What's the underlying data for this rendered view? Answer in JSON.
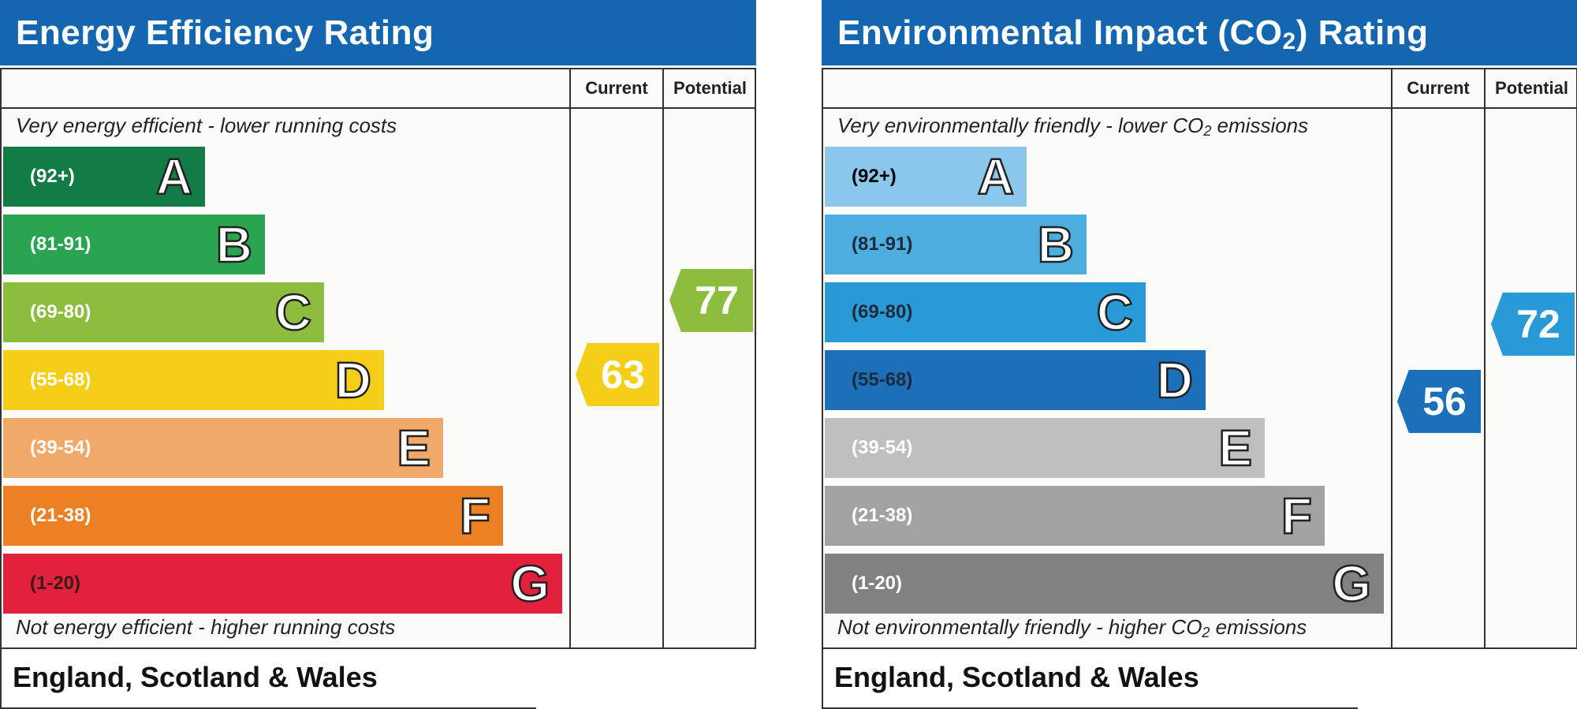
{
  "chart_data": [
    {
      "type": "bar",
      "title": "Energy Efficiency Rating",
      "column_headers": [
        "Current",
        "Potential"
      ],
      "top_note": "Very energy efficient - lower running costs",
      "bottom_note": "Not energy efficient - higher running costs",
      "footer": "England, Scotland & Wales",
      "bands": [
        {
          "range": "(92+)",
          "letter": "A",
          "min": 92,
          "max": 100,
          "color": "#137b45"
        },
        {
          "range": "(81-91)",
          "letter": "B",
          "min": 81,
          "max": 91,
          "color": "#2aa450"
        },
        {
          "range": "(69-80)",
          "letter": "C",
          "min": 69,
          "max": 80,
          "color": "#8cbd3f"
        },
        {
          "range": "(55-68)",
          "letter": "D",
          "min": 55,
          "max": 68,
          "color": "#f5cf17"
        },
        {
          "range": "(39-54)",
          "letter": "E",
          "min": 39,
          "max": 54,
          "color": "#f1a96a"
        },
        {
          "range": "(21-38)",
          "letter": "F",
          "min": 21,
          "max": 38,
          "color": "#ec8024"
        },
        {
          "range": "(1-20)",
          "letter": "G",
          "min": 1,
          "max": 20,
          "color": "#e2213c"
        }
      ],
      "current": {
        "value": 63,
        "band": "D",
        "color": "#f5cf17"
      },
      "potential": {
        "value": 77,
        "band": "C",
        "color": "#8cbd3f"
      }
    },
    {
      "type": "bar",
      "title": "Environmental Impact (CO2) Rating",
      "column_headers": [
        "Current",
        "Potential"
      ],
      "top_note": "Very environmentally friendly - lower CO2 emissions",
      "bottom_note": "Not environmentally friendly - higher CO2 emissions",
      "footer": "England, Scotland & Wales",
      "bands": [
        {
          "range": "(92+)",
          "letter": "A",
          "min": 92,
          "max": 100,
          "color": "#8bc7ea"
        },
        {
          "range": "(81-91)",
          "letter": "B",
          "min": 81,
          "max": 91,
          "color": "#4eaddf"
        },
        {
          "range": "(69-80)",
          "letter": "C",
          "min": 69,
          "max": 80,
          "color": "#289ad6"
        },
        {
          "range": "(55-68)",
          "letter": "D",
          "min": 55,
          "max": 68,
          "color": "#1b70b9"
        },
        {
          "range": "(39-54)",
          "letter": "E",
          "min": 39,
          "max": 54,
          "color": "#bfbfbd"
        },
        {
          "range": "(21-38)",
          "letter": "F",
          "min": 21,
          "max": 38,
          "color": "#a3a3a3"
        },
        {
          "range": "(1-20)",
          "letter": "G",
          "min": 1,
          "max": 20,
          "color": "#818181"
        }
      ],
      "current": {
        "value": 56,
        "band": "D",
        "color": "#1b70b9"
      },
      "potential": {
        "value": 72,
        "band": "C",
        "color": "#289ad6"
      }
    }
  ]
}
